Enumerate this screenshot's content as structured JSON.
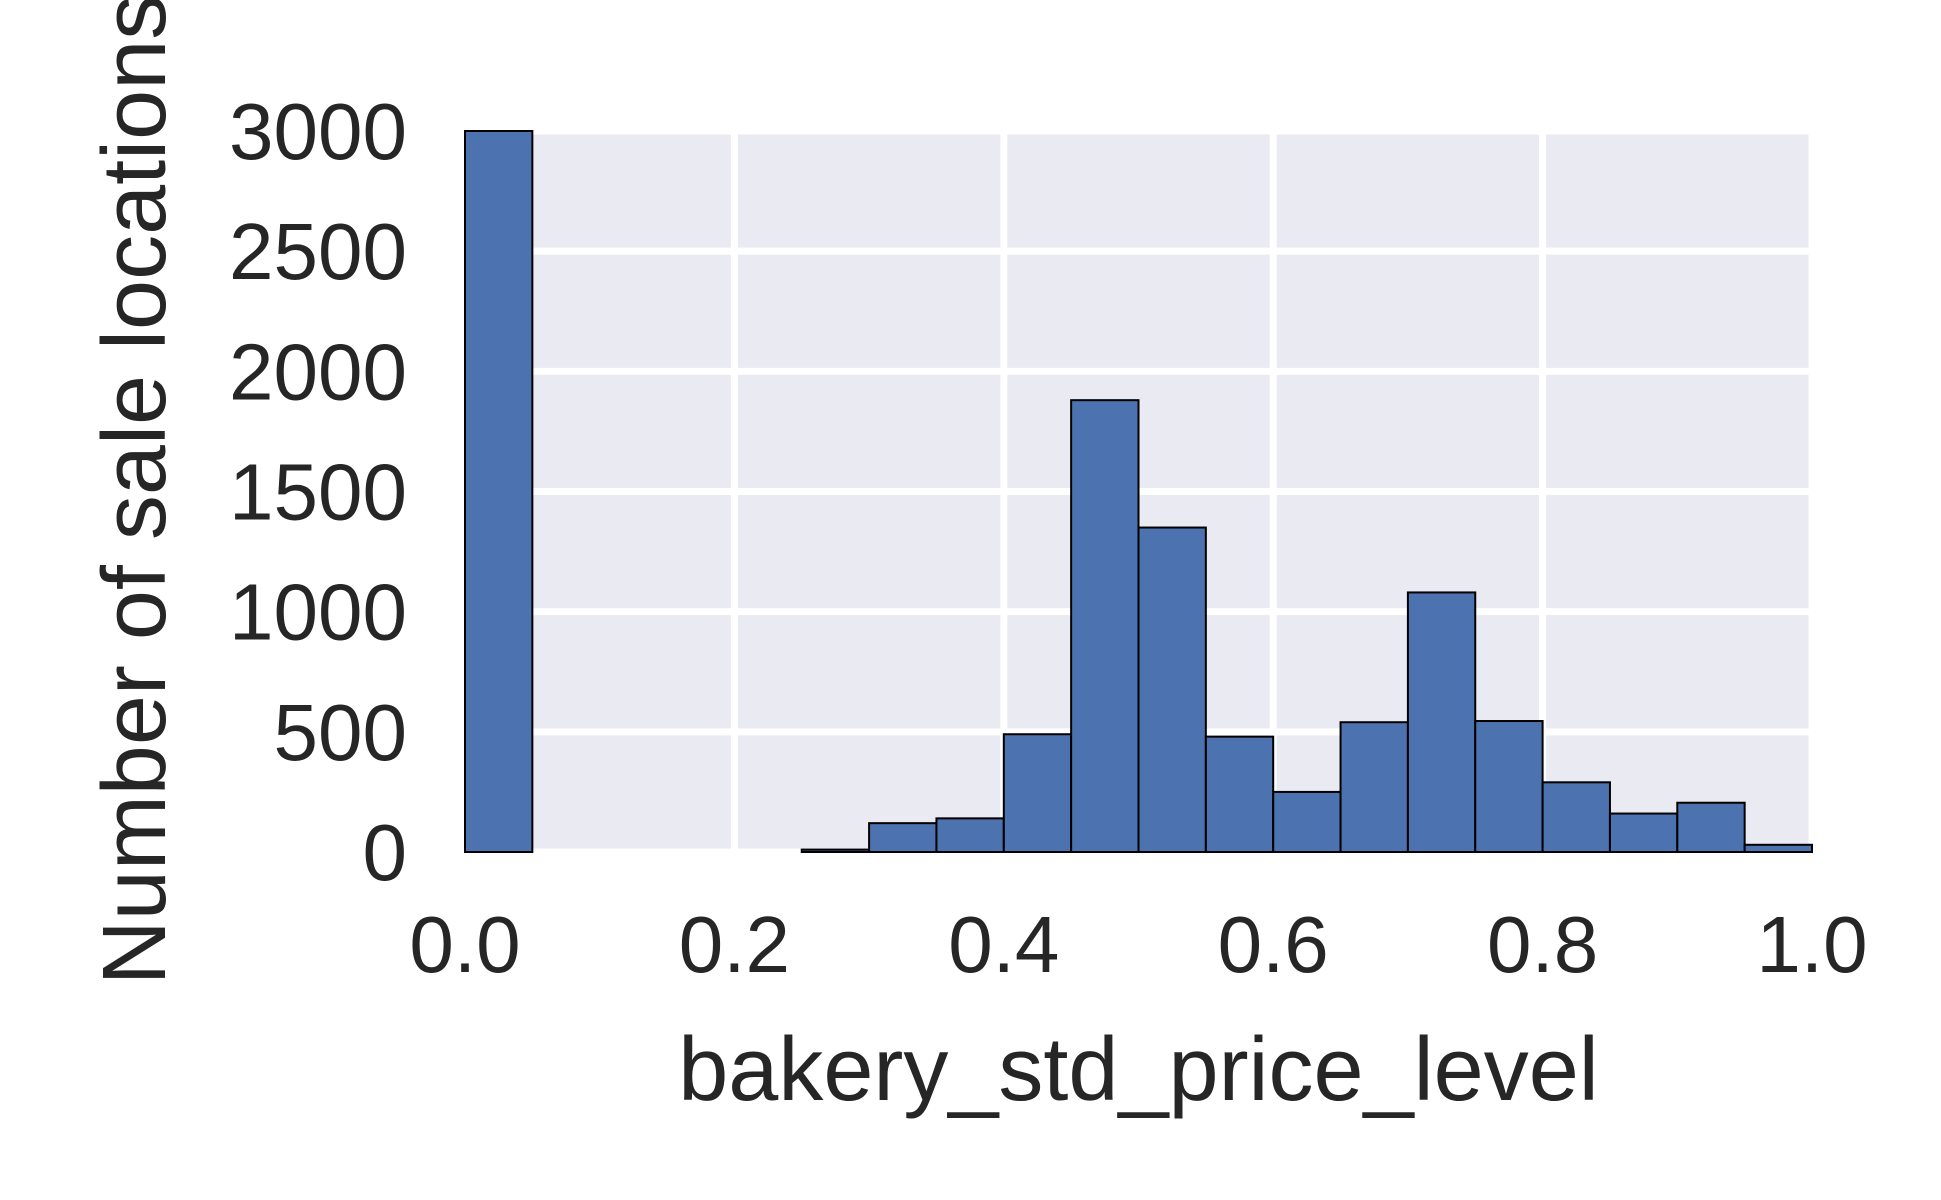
{
  "chart_data": {
    "type": "bar",
    "title": "",
    "xlabel": "bakery_std_price_level",
    "ylabel": "Number of sale locations",
    "xlim": [
      0.0,
      1.0
    ],
    "ylim": [
      0,
      3000
    ],
    "xticks": [
      "0.0",
      "0.2",
      "0.4",
      "0.6",
      "0.8",
      "1.0"
    ],
    "yticks": [
      "0",
      "500",
      "1000",
      "1500",
      "2000",
      "2500",
      "3000"
    ],
    "grid": true,
    "bin_edges": [
      0.0,
      0.05,
      0.1,
      0.15,
      0.2,
      0.25,
      0.3,
      0.35,
      0.4,
      0.45,
      0.5,
      0.55,
      0.6,
      0.65,
      0.7,
      0.75,
      0.8,
      0.85,
      0.9,
      0.95,
      1.0
    ],
    "values": [
      3000,
      0,
      0,
      0,
      0,
      10,
      120,
      140,
      490,
      1880,
      1350,
      480,
      250,
      540,
      1080,
      545,
      290,
      160,
      205,
      30
    ],
    "colors": {
      "bar_fill": "#4c72b0",
      "bar_edge": "#000000",
      "plot_background": "#eaeaf2",
      "grid": "#ffffff"
    }
  }
}
